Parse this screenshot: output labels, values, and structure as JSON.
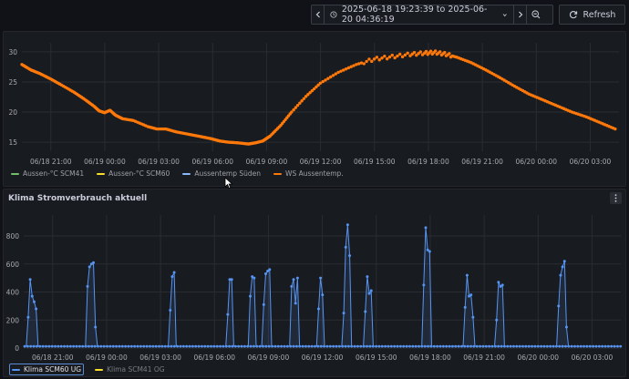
{
  "toolbar": {
    "time_range": "2025-06-18 19:23:39 to 2025-06-20 04:36:19",
    "refresh_label": "Refresh"
  },
  "panels": [
    {
      "title": "",
      "legend": [
        {
          "label": "Aussen-°C SCM41",
          "color": "#73bf69"
        },
        {
          "label": "Aussen-°C SCM60",
          "color": "#fade2a"
        },
        {
          "label": "Aussentemp Süden",
          "color": "#8ab8ff"
        },
        {
          "label": "WS Aussentemp.",
          "color": "#ff780a"
        }
      ]
    },
    {
      "title": "Klima Stromverbrauch aktuell",
      "legend": [
        {
          "label": "Klima SCM60 UG",
          "color": "#5794f2"
        },
        {
          "label": "Klima SCM41 OG",
          "color": "#fade2a"
        }
      ]
    }
  ],
  "chart_data": [
    {
      "type": "scatter",
      "title": "",
      "x_ticks": [
        "06/18 21:00",
        "06/19 00:00",
        "06/19 03:00",
        "06/19 06:00",
        "06/19 09:00",
        "06/19 12:00",
        "06/19 15:00",
        "06/19 18:00",
        "06/19 21:00",
        "06/20 00:00",
        "06/20 03:00"
      ],
      "y_ticks": [
        15,
        20,
        25,
        30
      ],
      "ylim": [
        13.5,
        31.5
      ],
      "x_unit": "hours since 2025-06-18 19:23:39",
      "xlim": [
        0,
        33.21
      ],
      "series": [
        {
          "name": "WS Aussentemp.",
          "color": "#ff780a",
          "x": [
            0,
            0.5,
            1.0,
            1.6,
            2.2,
            2.9,
            3.5,
            4.0,
            4.3,
            4.6,
            4.9,
            5.2,
            5.6,
            6.2,
            7.0,
            7.5,
            8.0,
            8.6,
            9.3,
            10.0,
            10.5,
            11.0,
            11.5,
            12.0,
            12.6,
            13.0,
            13.4,
            13.8,
            14.4,
            15.0,
            15.8,
            16.6,
            17.6,
            18.6,
            19.6,
            20.6,
            21.6,
            22.4,
            23.0,
            23.6,
            24.2,
            25.0,
            25.8,
            26.6,
            27.4,
            28.2,
            29.0,
            29.8,
            30.6,
            31.4,
            32.2,
            33.0
          ],
          "y": [
            27.9,
            27.0,
            26.4,
            25.5,
            24.5,
            23.3,
            22.1,
            21.0,
            20.2,
            19.9,
            20.3,
            19.5,
            18.9,
            18.6,
            17.6,
            17.2,
            17.2,
            16.7,
            16.3,
            15.9,
            15.6,
            15.2,
            15.0,
            14.9,
            14.7,
            14.9,
            15.2,
            16.0,
            17.8,
            20.0,
            22.6,
            24.8,
            26.6,
            27.9,
            28.8,
            29.2,
            29.6,
            29.8,
            29.9,
            29.6,
            29.1,
            28.2,
            27.0,
            25.7,
            24.3,
            23.0,
            22.0,
            21.0,
            20.0,
            19.2,
            18.2,
            17.2
          ]
        }
      ]
    },
    {
      "type": "scatter",
      "title": "Klima Stromverbrauch aktuell",
      "x_ticks": [
        "06/18 21:00",
        "06/19 00:00",
        "06/19 03:00",
        "06/19 06:00",
        "06/19 09:00",
        "06/19 12:00",
        "06/19 15:00",
        "06/19 18:00",
        "06/19 21:00",
        "06/20 00:00",
        "06/20 03:00"
      ],
      "y_ticks": [
        0,
        200,
        400,
        600,
        800
      ],
      "ylim": [
        0,
        950
      ],
      "x_unit": "hours since 2025-06-18 19:23:39",
      "xlim": [
        0,
        33.21
      ],
      "baseline": 12,
      "series": [
        {
          "name": "Klima SCM60 UG",
          "color": "#5794f2",
          "spikes": [
            {
              "x": 0.25,
              "points": [
                220,
                490,
                370,
                330,
                280
              ]
            },
            {
              "x": 3.55,
              "points": [
                440,
                580,
                600,
                610,
                150
              ]
            },
            {
              "x": 8.15,
              "points": [
                270,
                510,
                540
              ]
            },
            {
              "x": 11.35,
              "points": [
                240,
                490,
                490
              ]
            },
            {
              "x": 12.6,
              "points": [
                370,
                510,
                500
              ]
            },
            {
              "x": 13.35,
              "points": [
                310,
                530,
                550,
                560
              ]
            },
            {
              "x": 14.9,
              "points": [
                440,
                490,
                320,
                500
              ]
            },
            {
              "x": 16.4,
              "points": [
                280,
                500,
                380
              ]
            },
            {
              "x": 17.8,
              "points": [
                250,
                720,
                880,
                660
              ]
            },
            {
              "x": 19.0,
              "points": [
                260,
                510,
                390,
                410
              ]
            },
            {
              "x": 22.25,
              "points": [
                450,
                860,
                700,
                690
              ]
            },
            {
              "x": 24.55,
              "points": [
                290,
                520,
                370,
                380,
                220
              ]
            },
            {
              "x": 26.3,
              "points": [
                200,
                470,
                440,
                450
              ]
            },
            {
              "x": 29.75,
              "points": [
                300,
                520,
                580,
                620,
                150
              ]
            }
          ]
        },
        {
          "name": "Klima SCM41 OG",
          "color": "#fade2a",
          "spikes": []
        }
      ]
    }
  ]
}
